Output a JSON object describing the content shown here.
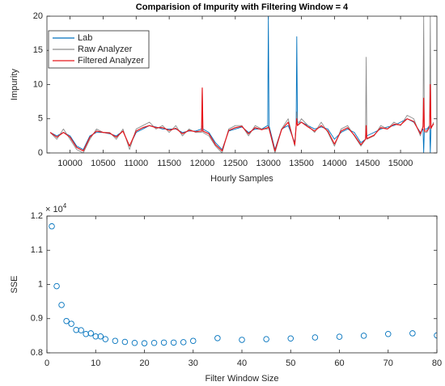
{
  "chart_data": [
    {
      "type": "line",
      "title": "Comparision of Impurity with Filtering Window = 4",
      "xlabel": "Hourly Samples",
      "ylabel": "Impurity",
      "x": [
        9700,
        9800,
        9900,
        10000,
        10100,
        10200,
        10300,
        10400,
        10500,
        10600,
        10700,
        10800,
        10900,
        11000,
        11100,
        11200,
        11300,
        11400,
        11500,
        11600,
        11700,
        11800,
        11900,
        11990,
        12000,
        12010,
        12100,
        12200,
        12300,
        12400,
        12500,
        12600,
        12700,
        12800,
        12900,
        12990,
        13000,
        13010,
        13100,
        13200,
        13300,
        13400,
        13420,
        13430,
        13440,
        13500,
        13600,
        13700,
        13800,
        13900,
        14000,
        14100,
        14200,
        14300,
        14400,
        14470,
        14480,
        14490,
        14600,
        14700,
        14800,
        14900,
        15000,
        15100,
        15200,
        15300,
        15340,
        15350,
        15360,
        15400,
        15440,
        15450,
        15460,
        15500
      ],
      "series": [
        {
          "name": "Lab",
          "color": "#0072bd",
          "values": [
            3,
            2.5,
            3,
            2.5,
            1,
            0.5,
            2.5,
            3,
            3,
            2.8,
            2.5,
            3.2,
            1,
            3,
            3.5,
            4,
            3.8,
            3.5,
            3.5,
            3.5,
            3,
            3.2,
            3.2,
            3.5,
            4,
            3.5,
            3,
            1.5,
            0.5,
            3.2,
            3.5,
            3.8,
            3,
            3.5,
            3.5,
            4,
            20,
            4,
            0.5,
            3.5,
            4,
            1.5,
            4,
            17,
            4.5,
            4.5,
            4,
            3.5,
            3.8,
            3.5,
            2,
            3,
            3.5,
            3,
            1.5,
            2,
            2.5,
            2.5,
            3,
            3.5,
            3.8,
            4,
            4.5,
            5,
            4.5,
            3,
            3.5,
            0,
            3.5,
            3.5,
            4,
            0,
            3.8,
            4.2
          ]
        },
        {
          "name": "Raw Analyzer",
          "color": "#8c8c8c",
          "values": [
            3,
            2,
            3.5,
            2,
            0.5,
            0,
            2,
            3.5,
            3,
            3,
            2,
            3.5,
            0.5,
            3.5,
            4,
            4.5,
            3.5,
            4,
            3,
            4,
            2.5,
            3.5,
            3,
            3,
            9.5,
            3,
            2.5,
            1,
            0,
            3.5,
            4,
            4,
            2.5,
            4,
            3.5,
            3.5,
            4,
            3.5,
            0,
            3.5,
            5,
            1,
            4,
            6,
            4,
            5,
            4,
            3,
            4.5,
            3,
            1,
            3.5,
            4,
            2.5,
            1,
            2,
            14,
            2,
            2.5,
            4,
            3.5,
            4.5,
            4,
            5.5,
            5,
            2.5,
            4,
            20,
            3,
            3,
            4,
            20,
            3.5,
            4.5
          ]
        },
        {
          "name": "Filtered Analyzer",
          "color": "#e8161b",
          "values": [
            3,
            2.3,
            3,
            2.3,
            0.8,
            0.3,
            2.3,
            3.2,
            3,
            2.9,
            2.3,
            3.2,
            1,
            3.2,
            3.7,
            4,
            3.7,
            3.7,
            3.3,
            3.6,
            2.8,
            3.3,
            3.1,
            3.2,
            9.5,
            3.2,
            2.8,
            1.2,
            0.3,
            3.3,
            3.7,
            3.9,
            2.8,
            3.7,
            3.4,
            3.7,
            3.8,
            3.6,
            0.3,
            3.4,
            4.5,
            1.2,
            3.9,
            5,
            4,
            4.5,
            3.8,
            3.2,
            4,
            3.2,
            1.3,
            3.2,
            3.7,
            2.6,
            1.2,
            2,
            4,
            2.1,
            2.6,
            3.7,
            3.5,
            4.2,
            4.1,
            5,
            4.6,
            2.8,
            3.8,
            8,
            3.2,
            3.2,
            3.8,
            10,
            3.6,
            4.3
          ]
        }
      ],
      "xlim": [
        9650,
        15550
      ],
      "xticks": [
        10000,
        10500,
        11000,
        11500,
        12000,
        12500,
        13000,
        13500,
        14000,
        14500,
        15000
      ],
      "ylim": [
        0,
        20
      ],
      "yticks": [
        0,
        5,
        10,
        15,
        20
      ],
      "legend": "northwest"
    },
    {
      "type": "scatter",
      "xlabel": "Filter Window Size",
      "ylabel": "SSE",
      "y_multiplier": "× 10",
      "y_exponent": "4",
      "color": "#0072bd",
      "x": [
        1,
        2,
        3,
        4,
        5,
        6,
        7,
        8,
        9,
        10,
        11,
        12,
        14,
        16,
        18,
        20,
        22,
        24,
        26,
        28,
        30,
        35,
        40,
        45,
        50,
        55,
        60,
        65,
        70,
        75,
        80
      ],
      "values": [
        1.17,
        0.995,
        0.94,
        0.893,
        0.885,
        0.867,
        0.866,
        0.855,
        0.857,
        0.848,
        0.848,
        0.84,
        0.835,
        0.832,
        0.829,
        0.828,
        0.829,
        0.83,
        0.83,
        0.831,
        0.835,
        0.843,
        0.838,
        0.84,
        0.842,
        0.845,
        0.847,
        0.85,
        0.855,
        0.857,
        0.851
      ],
      "xlim": [
        0,
        80
      ],
      "xticks": [
        0,
        10,
        20,
        30,
        40,
        50,
        60,
        70,
        80
      ],
      "ylim": [
        0.8,
        1.2
      ],
      "yticks": [
        0.8,
        0.9,
        1,
        1.1,
        1.2
      ]
    }
  ]
}
